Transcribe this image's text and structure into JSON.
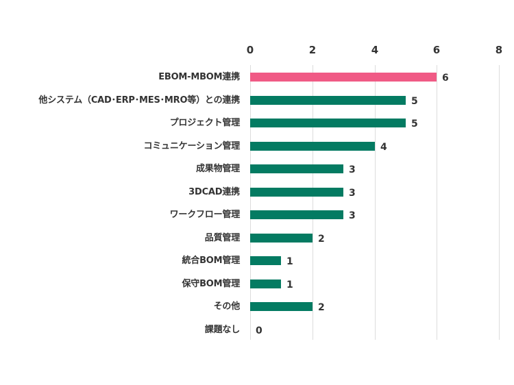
{
  "chart_data": {
    "type": "bar",
    "orientation": "horizontal",
    "title": "",
    "xlabel": "",
    "ylabel": "",
    "xlim": [
      0,
      8
    ],
    "x_ticks": [
      "0",
      "2",
      "4",
      "6",
      "8"
    ],
    "x_axis_position": "top",
    "grid": true,
    "legend": null,
    "categories": [
      "EBOM-MBOM連携",
      "他システム（CAD･ERP･MES･MRO等）との連携",
      "プロジェクト管理",
      "コミュニケーション管理",
      "成果物管理",
      "3DCAD連携",
      "ワークフロー管理",
      "品質管理",
      "統合BOM管理",
      "保守BOM管理",
      "その他",
      "課題なし"
    ],
    "values": [
      6,
      5,
      5,
      4,
      3,
      3,
      3,
      2,
      1,
      1,
      2,
      0
    ],
    "value_labels": [
      "6",
      "5",
      "5",
      "4",
      "3",
      "3",
      "3",
      "2",
      "1",
      "1",
      "2",
      "0"
    ],
    "colors": {
      "highlight": "#F05A85",
      "default": "#047B62",
      "grid": "#DCDCDC",
      "text": "#333333"
    },
    "highlighted_index": 0
  }
}
